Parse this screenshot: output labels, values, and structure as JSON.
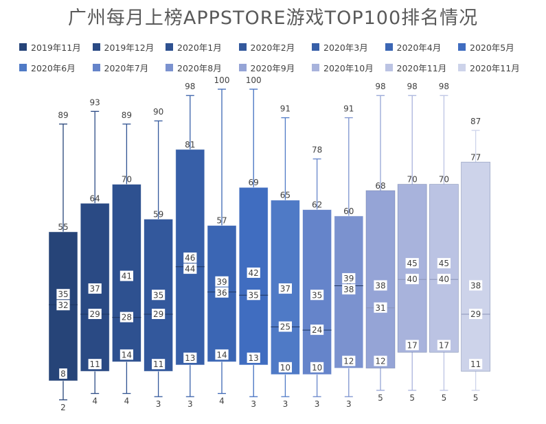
{
  "chart_data": {
    "type": "box",
    "title": "广州每月上榜APPSTORE游戏TOP100排名情况",
    "xlabel": "",
    "ylabel": "",
    "legend_position": "top",
    "grid": false,
    "ylim": [
      0,
      100
    ],
    "series": [
      {
        "name": "2019年11月",
        "color": "#264478",
        "min": 2,
        "q1": 8,
        "median": 32,
        "mean": 35,
        "q3": 55,
        "max": 89
      },
      {
        "name": "2019年12月",
        "color": "#2A4A84",
        "min": 4,
        "q1": 11,
        "median": 29,
        "mean": 37,
        "q3": 64,
        "max": 93
      },
      {
        "name": "2020年1月",
        "color": "#2E5190",
        "min": 4,
        "q1": 14,
        "median": 28,
        "mean": 41,
        "q3": 70,
        "max": 89
      },
      {
        "name": "2020年2月",
        "color": "#33589C",
        "min": 3,
        "q1": 11,
        "median": 29,
        "mean": 35,
        "q3": 59,
        "max": 90
      },
      {
        "name": "2020年3月",
        "color": "#375FA8",
        "min": 3,
        "q1": 13,
        "median": 44,
        "mean": 46,
        "q3": 81,
        "max": 98
      },
      {
        "name": "2020年4月",
        "color": "#3B66B4",
        "min": 4,
        "q1": 14,
        "median": 36,
        "mean": 39,
        "q3": 57,
        "max": 100
      },
      {
        "name": "2020年5月",
        "color": "#406DC0",
        "min": 3,
        "q1": 13,
        "median": 35,
        "mean": 42,
        "q3": 69,
        "max": 100
      },
      {
        "name": "2020年6月",
        "color": "#4F7AC6",
        "min": 3,
        "q1": 10,
        "median": 25,
        "mean": 37,
        "q3": 65,
        "max": 91
      },
      {
        "name": "2020年7月",
        "color": "#6584CA",
        "min": 3,
        "q1": 10,
        "median": 24,
        "mean": 35,
        "q3": 62,
        "max": 78
      },
      {
        "name": "2020年8月",
        "color": "#7B92CF",
        "min": 3,
        "q1": 12,
        "median": 38,
        "mean": 39,
        "q3": 60,
        "max": 91
      },
      {
        "name": "2020年9月",
        "color": "#95A4D6",
        "min": 5,
        "q1": 12,
        "median": 31,
        "mean": 38,
        "q3": 68,
        "max": 98
      },
      {
        "name": "2020年10月",
        "color": "#A8B3DC",
        "min": 5,
        "q1": 17,
        "median": 40,
        "mean": 45,
        "q3": 70,
        "max": 98
      },
      {
        "name": "2020年11月",
        "color": "#BBC3E3",
        "min": 5,
        "q1": 17,
        "median": 40,
        "mean": 45,
        "q3": 70,
        "max": 98
      },
      {
        "name": "2020年11月",
        "color": "#CDD3EA",
        "min": 5,
        "q1": 11,
        "median": 29,
        "mean": 38,
        "q3": 77,
        "max": 87
      }
    ]
  }
}
